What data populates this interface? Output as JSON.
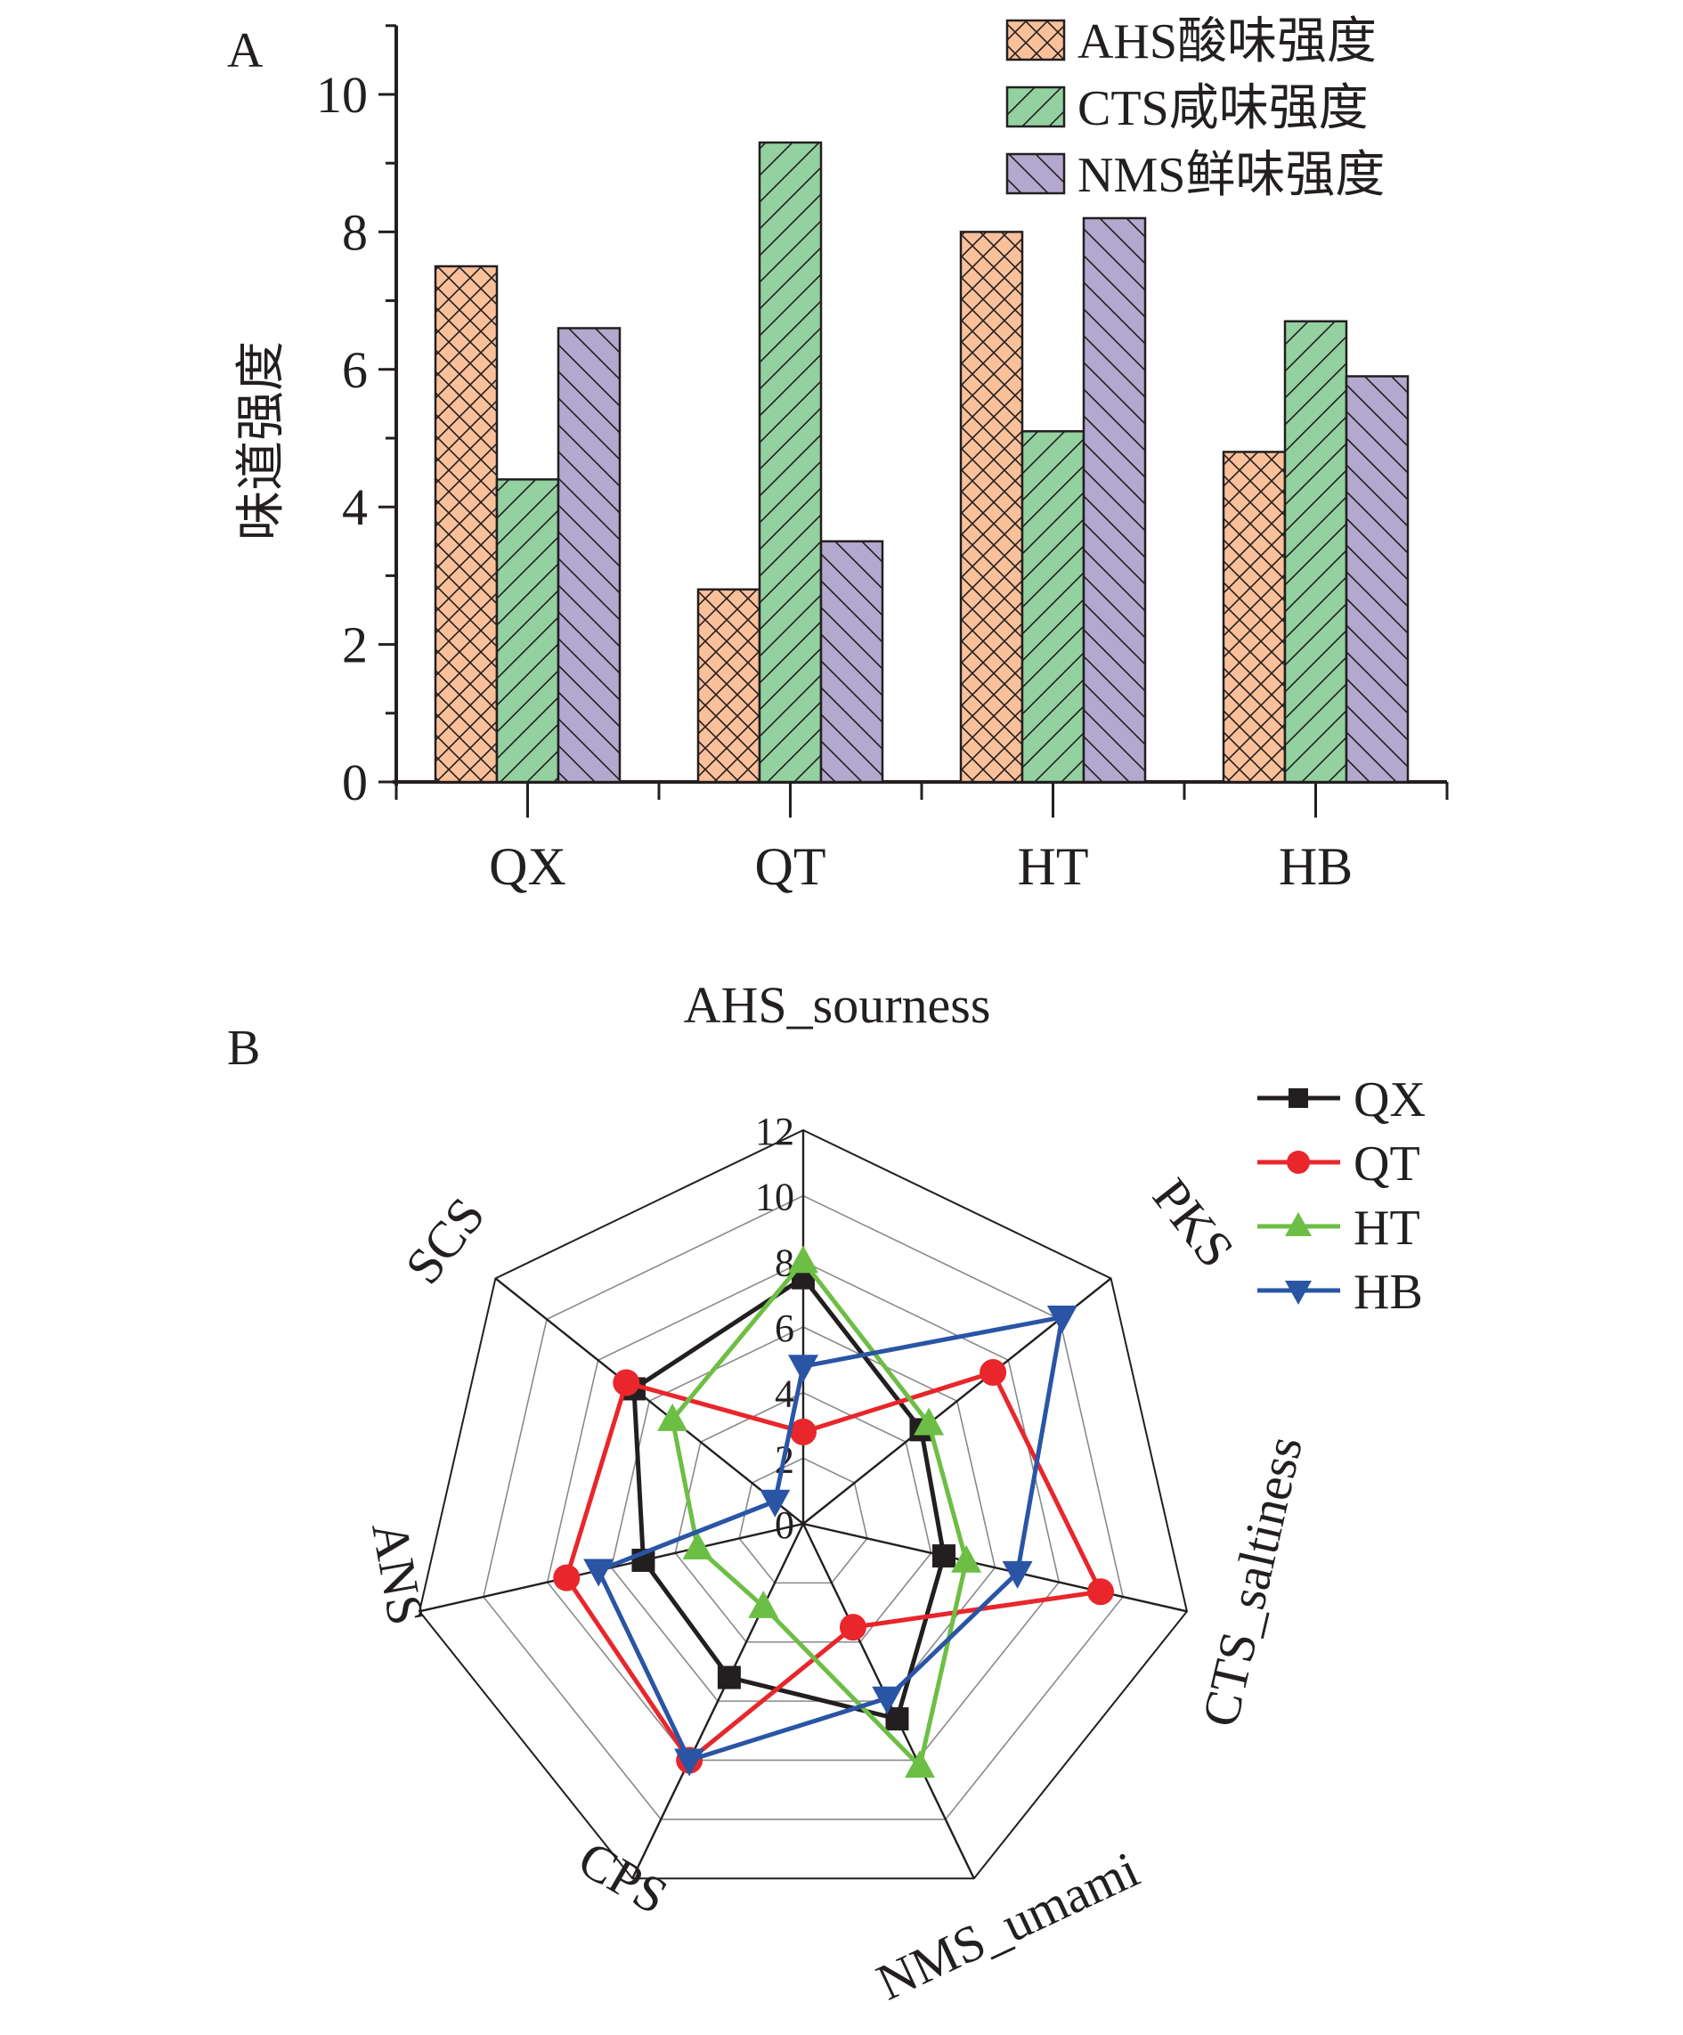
{
  "figure": {
    "panel_a_label": "A",
    "panel_b_label": "B"
  },
  "chart_data": [
    {
      "type": "bar",
      "panel": "A",
      "title": "",
      "xlabel": "",
      "ylabel": "味道强度",
      "ylim": [
        0,
        11
      ],
      "yticks": [
        0,
        2,
        4,
        6,
        8,
        10
      ],
      "ytick_labels": [
        "0",
        "2",
        "4",
        "6",
        "8",
        "10"
      ],
      "minor_yticks": [
        1,
        3,
        5,
        7,
        9
      ],
      "categories": [
        "QX",
        "QT",
        "HT",
        "HB"
      ],
      "grid": false,
      "legend_position": "top-right",
      "series": [
        {
          "name": "AHS酸味强度",
          "color": "#F9C09A",
          "hatch": "crosshatch",
          "values": [
            7.5,
            2.8,
            8.0,
            4.8
          ]
        },
        {
          "name": "CTS咸味强度",
          "color": "#93D1A0",
          "hatch": "forward-diagonal",
          "values": [
            4.4,
            9.3,
            5.1,
            6.7
          ]
        },
        {
          "name": "NMS鲜味强度",
          "color": "#B3A8CE",
          "hatch": "back-diagonal",
          "values": [
            6.6,
            3.5,
            8.2,
            5.9
          ]
        }
      ]
    },
    {
      "type": "radar",
      "panel": "B",
      "title": "",
      "axes": [
        "AHS_sourness",
        "PKS",
        "CTS_saltiness",
        "NMS_umami",
        "CPS",
        "ANS",
        "SCS"
      ],
      "rlim": [
        0,
        12
      ],
      "rticks": [
        0,
        2,
        4,
        6,
        8,
        10,
        12
      ],
      "rtick_labels": [
        "0",
        "2",
        "4",
        "6",
        "8",
        "10",
        "12"
      ],
      "grid": true,
      "legend_position": "top-right",
      "series": [
        {
          "name": "QX",
          "color": "#231F20",
          "marker": "square",
          "values": [
            7.5,
            4.6,
            4.4,
            6.6,
            5.2,
            5.0,
            6.6
          ]
        },
        {
          "name": "QT",
          "color": "#E8262B",
          "marker": "circle",
          "values": [
            2.8,
            7.4,
            9.3,
            3.5,
            8.0,
            7.4,
            6.9
          ]
        },
        {
          "name": "HT",
          "color": "#6DBE45",
          "marker": "triangle-up",
          "values": [
            8.0,
            4.9,
            5.1,
            8.2,
            2.8,
            3.3,
            5.1
          ]
        },
        {
          "name": "HB",
          "color": "#2A55A5",
          "marker": "triangle-down",
          "values": [
            4.8,
            10.1,
            6.7,
            5.9,
            8.0,
            6.4,
            1.1
          ]
        }
      ]
    }
  ]
}
